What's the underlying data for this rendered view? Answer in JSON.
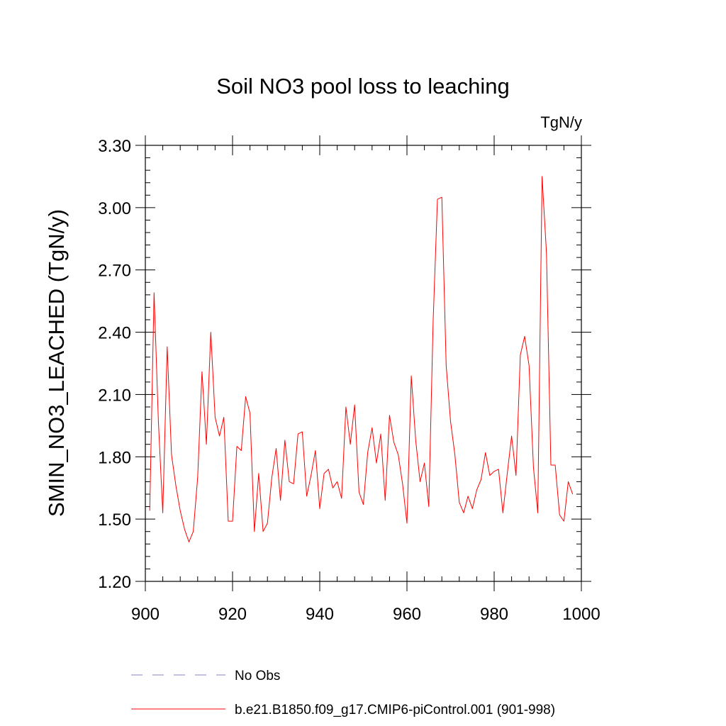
{
  "chart_data": {
    "type": "line",
    "title": "Soil NO3 pool loss to leaching",
    "units": "TgN/y",
    "ylabel": "SMIN_NO3_LEACHED  (TgN/y)",
    "xlabel": "",
    "xlim": [
      900,
      1000
    ],
    "ylim": [
      1.2,
      3.3
    ],
    "xticks": [
      900,
      920,
      940,
      960,
      980,
      1000
    ],
    "xtick_labels": [
      "900",
      "920",
      "940",
      "960",
      "980",
      "1000"
    ],
    "yticks": [
      1.2,
      1.5,
      1.8,
      2.1,
      2.4,
      2.7,
      3.0,
      3.3
    ],
    "ytick_labels": [
      "1.20",
      "1.50",
      "1.80",
      "2.10",
      "2.40",
      "2.70",
      "3.00",
      "3.30"
    ],
    "grid": false,
    "legend_position": "bottom",
    "series": [
      {
        "name": "b.e21.B1850.f09_g17.CMIP6-piControl.001 (901-998)",
        "color": "#ff0000",
        "style": "solid",
        "x": [
          901,
          902,
          903,
          904,
          905,
          906,
          907,
          908,
          909,
          910,
          911,
          912,
          913,
          914,
          915,
          916,
          917,
          918,
          919,
          920,
          921,
          922,
          923,
          924,
          925,
          926,
          927,
          928,
          929,
          930,
          931,
          932,
          933,
          934,
          935,
          936,
          937,
          938,
          939,
          940,
          941,
          942,
          943,
          944,
          945,
          946,
          947,
          948,
          949,
          950,
          951,
          952,
          953,
          954,
          955,
          956,
          957,
          958,
          959,
          960,
          961,
          962,
          963,
          964,
          965,
          966,
          967,
          968,
          969,
          970,
          971,
          972,
          973,
          974,
          975,
          976,
          977,
          978,
          979,
          980,
          981,
          982,
          983,
          984,
          985,
          986,
          987,
          988,
          989,
          990,
          991,
          992,
          993,
          994,
          995,
          996,
          997,
          998
        ],
        "y": [
          1.54,
          2.59,
          1.97,
          1.53,
          2.33,
          1.81,
          1.66,
          1.54,
          1.45,
          1.39,
          1.44,
          1.7,
          2.21,
          1.86,
          2.4,
          1.99,
          1.9,
          1.99,
          1.49,
          1.49,
          1.85,
          1.83,
          2.09,
          2.01,
          1.44,
          1.72,
          1.44,
          1.48,
          1.7,
          1.84,
          1.59,
          1.88,
          1.68,
          1.67,
          1.91,
          1.92,
          1.61,
          1.71,
          1.83,
          1.55,
          1.72,
          1.74,
          1.65,
          1.68,
          1.6,
          2.04,
          1.86,
          2.05,
          1.63,
          1.57,
          1.82,
          1.94,
          1.77,
          1.91,
          1.59,
          2.0,
          1.87,
          1.81,
          1.67,
          1.48,
          2.19,
          1.88,
          1.68,
          1.77,
          1.56,
          2.45,
          3.04,
          3.05,
          2.24,
          1.97,
          1.81,
          1.58,
          1.53,
          1.61,
          1.55,
          1.64,
          1.69,
          1.82,
          1.71,
          1.73,
          1.74,
          1.53,
          1.72,
          1.9,
          1.71,
          2.29,
          2.38,
          2.24,
          1.75,
          1.53,
          3.15,
          2.78,
          1.76,
          1.76,
          1.52,
          1.49,
          1.68,
          1.62
        ]
      }
    ],
    "legend": [
      {
        "label": "No Obs",
        "color": "#8080c0",
        "style": "dashed"
      },
      {
        "label": "b.e21.B1850.f09_g17.CMIP6-piControl.001 (901-998)",
        "color": "#ff0000",
        "style": "solid"
      }
    ]
  }
}
